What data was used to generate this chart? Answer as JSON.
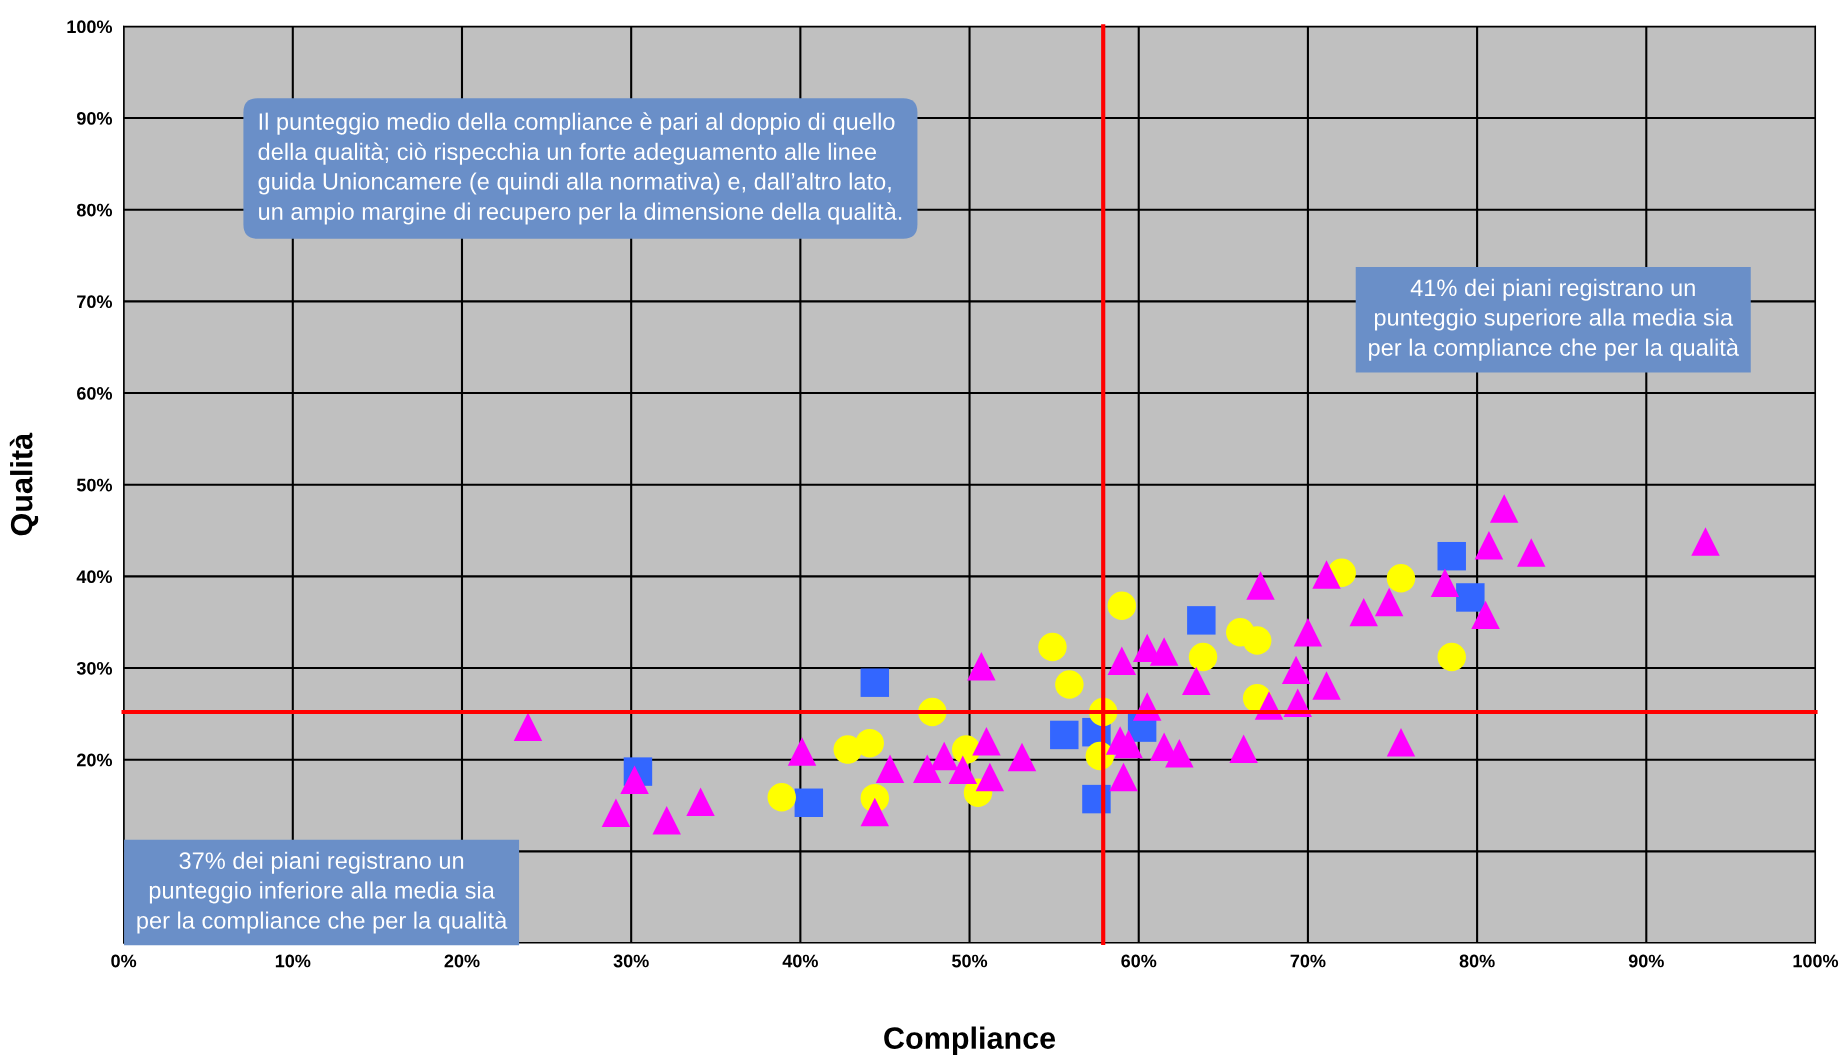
{
  "chart_data": {
    "type": "scatter",
    "xlabel": "Compliance",
    "ylabel": "Qualità",
    "xlim": [
      0,
      100
    ],
    "ylim": [
      0,
      100
    ],
    "xticks": [
      {
        "value": 0,
        "label": "0%"
      },
      {
        "value": 10,
        "label": "10%"
      },
      {
        "value": 20,
        "label": "20%"
      },
      {
        "value": 30,
        "label": "30%"
      },
      {
        "value": 40,
        "label": "40%"
      },
      {
        "value": 50,
        "label": "50%"
      },
      {
        "value": 60,
        "label": "60%"
      },
      {
        "value": 70,
        "label": "70%"
      },
      {
        "value": 80,
        "label": "80%"
      },
      {
        "value": 90,
        "label": "90%"
      },
      {
        "value": 100,
        "label": "100%"
      }
    ],
    "yticks": [
      {
        "value": 0,
        "label": null
      },
      {
        "value": 10,
        "label": null
      },
      {
        "value": 20,
        "label": "20%"
      },
      {
        "value": 30,
        "label": "30%"
      },
      {
        "value": 40,
        "label": "40%"
      },
      {
        "value": 50,
        "label": "50%"
      },
      {
        "value": 60,
        "label": "60%"
      },
      {
        "value": 70,
        "label": "70%"
      },
      {
        "value": 80,
        "label": "80%"
      },
      {
        "value": 90,
        "label": "90%"
      },
      {
        "value": 100,
        "label": "100%"
      }
    ],
    "grid": true,
    "legend": false,
    "ref_lines": [
      {
        "axis": "x",
        "value": 57.9,
        "color": "#ff0000"
      },
      {
        "axis": "y",
        "value": 25.2,
        "color": "#ff0000"
      }
    ],
    "series": [
      {
        "color": "#3366ff",
        "marker": "square",
        "x": [
          30.4,
          44.4,
          40.5,
          55.6,
          57.5,
          57.5,
          60.2,
          63.7,
          78.5,
          79.6
        ],
        "values": [
          18.7,
          28.4,
          15.3,
          22.7,
          23.0,
          15.7,
          23.5,
          35.2,
          42.2,
          37.7
        ]
      },
      {
        "color": "#ffff00",
        "marker": "circle",
        "x": [
          38.9,
          42.8,
          44.1,
          44.4,
          47.8,
          49.8,
          50.5,
          54.9,
          55.9,
          57.7,
          57.9,
          59.0,
          63.8,
          66.0,
          67.0,
          67.0,
          72.0,
          75.5,
          78.5
        ],
        "values": [
          15.9,
          21.1,
          21.8,
          15.8,
          25.2,
          21.1,
          16.4,
          32.3,
          28.2,
          20.4,
          25.2,
          36.8,
          31.2,
          33.9,
          33.0,
          26.7,
          40.4,
          39.8,
          31.2
        ]
      },
      {
        "color": "#ff00ff",
        "marker": "triangle",
        "x": [
          23.9,
          29.1,
          30.2,
          32.1,
          34.1,
          40.1,
          44.4,
          45.3,
          47.5,
          48.5,
          49.6,
          50.7,
          51.0,
          51.2,
          53.1,
          59.0,
          58.9,
          59.1,
          59.4,
          60.5,
          60.5,
          61.5,
          61.5,
          62.4,
          63.4,
          66.2,
          67.2,
          67.7,
          69.3,
          69.4,
          70.0,
          71.1,
          71.1,
          73.3,
          74.8,
          75.5,
          78.1,
          80.5,
          80.7,
          81.6,
          83.2,
          93.5
        ],
        "values": [
          23.6,
          14.2,
          17.8,
          13.4,
          15.4,
          20.9,
          14.3,
          19.0,
          19.0,
          20.4,
          18.9,
          30.2,
          22.0,
          18.1,
          20.3,
          30.8,
          22.1,
          18.1,
          21.7,
          25.8,
          32.2,
          31.8,
          21.4,
          20.7,
          28.6,
          21.2,
          39.0,
          25.9,
          29.8,
          26.2,
          33.9,
          40.2,
          28.1,
          36.1,
          37.2,
          21.9,
          39.3,
          35.8,
          43.4,
          47.4,
          42.6,
          43.8
        ]
      }
    ],
    "annotations": [
      "Il punteggio medio della compliance è pari al doppio di quello\ndella qualità; ciò rispecchia un forte adeguamento alle linee\nguida Unioncamere (e quindi alla normativa) e, dall’altro lato,\nun ampio margine di recupero per la dimensione della qualità.",
      "41% dei piani registrano un\npunteggio superiore alla media sia\nper la compliance che per la qualità",
      "37% dei piani registrano un\npunteggio inferiore alla media sia\nper la compliance che per la qualità"
    ]
  }
}
